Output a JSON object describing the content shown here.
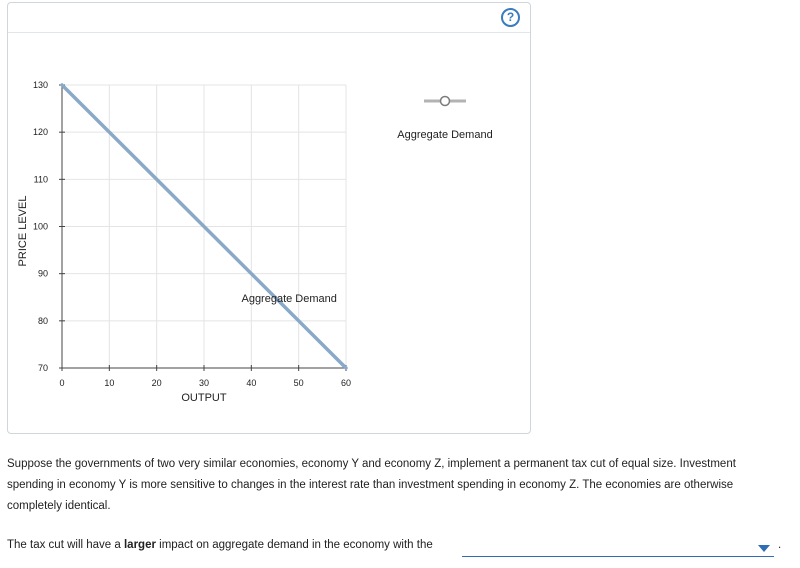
{
  "panel": {
    "help_icon": "question-mark-circle-icon",
    "help_label": "?"
  },
  "legend": {
    "label": "Aggregate Demand",
    "icon": "line-with-circle-marker-icon"
  },
  "chart_data": {
    "type": "line",
    "xlabel": "OUTPUT",
    "ylabel": "PRICE LEVEL",
    "xlim": [
      0,
      60
    ],
    "ylim": [
      70,
      130
    ],
    "x_ticks": [
      "0",
      "10",
      "20",
      "30",
      "40",
      "50",
      "60"
    ],
    "y_ticks": [
      "70",
      "80",
      "90",
      "100",
      "110",
      "120",
      "130"
    ],
    "grid": true,
    "legend_position": "right",
    "series": [
      {
        "name": "Aggregate Demand",
        "color": "#8aa9c9",
        "points": [
          [
            0,
            130
          ],
          [
            60,
            70
          ]
        ],
        "label": "Aggregate Demand",
        "label_at": [
          48,
          84
        ]
      }
    ]
  },
  "text": {
    "paragraph": "Suppose the governments of two very similar economies, economy Y and economy Z, implement a permanent tax cut of equal size. Investment spending in economy Y is more sensitive to changes in the interest rate than investment spending in economy Z. The economies are otherwise completely identical.",
    "question_prefix": "The tax cut will have a ",
    "question_bold": "larger",
    "question_suffix": " impact on aggregate demand in the economy with the",
    "dropdown_value": "",
    "end_period": "."
  }
}
